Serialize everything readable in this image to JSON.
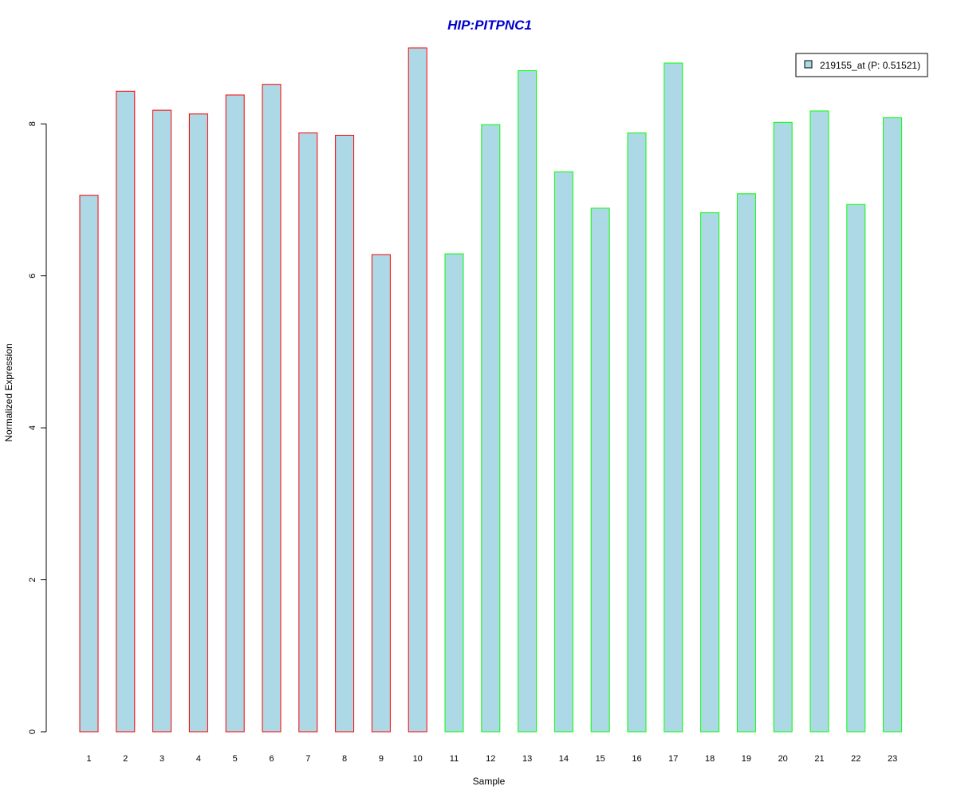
{
  "chart_data": {
    "type": "bar",
    "title": "HIP:PITPNC1",
    "xlabel": "Sample",
    "ylabel": "Normalized Expression",
    "categories": [
      "1",
      "2",
      "3",
      "4",
      "5",
      "6",
      "7",
      "8",
      "9",
      "10",
      "11",
      "12",
      "13",
      "14",
      "15",
      "16",
      "17",
      "18",
      "19",
      "20",
      "21",
      "22",
      "23"
    ],
    "values": [
      7.06,
      8.43,
      8.18,
      8.13,
      8.38,
      8.52,
      7.88,
      7.85,
      6.28,
      9.0,
      6.29,
      7.99,
      8.7,
      7.37,
      6.89,
      7.88,
      8.8,
      6.83,
      7.08,
      8.02,
      8.17,
      6.94,
      8.08
    ],
    "groups": [
      "red",
      "red",
      "red",
      "red",
      "red",
      "red",
      "red",
      "red",
      "red",
      "red",
      "green",
      "green",
      "green",
      "green",
      "green",
      "green",
      "green",
      "green",
      "green",
      "green",
      "green",
      "green",
      "green"
    ],
    "ylim": [
      0,
      9
    ],
    "yticks": [
      0,
      2,
      4,
      6,
      8
    ],
    "grid": false,
    "legend": {
      "position": "top-right",
      "entries": [
        "219155_at (P: 0.51521)"
      ]
    },
    "colors": {
      "bar_fill": "#add8e6",
      "group_border": {
        "red": "#ff0000",
        "green": "#00ff00"
      },
      "title": "#0000cc"
    }
  }
}
